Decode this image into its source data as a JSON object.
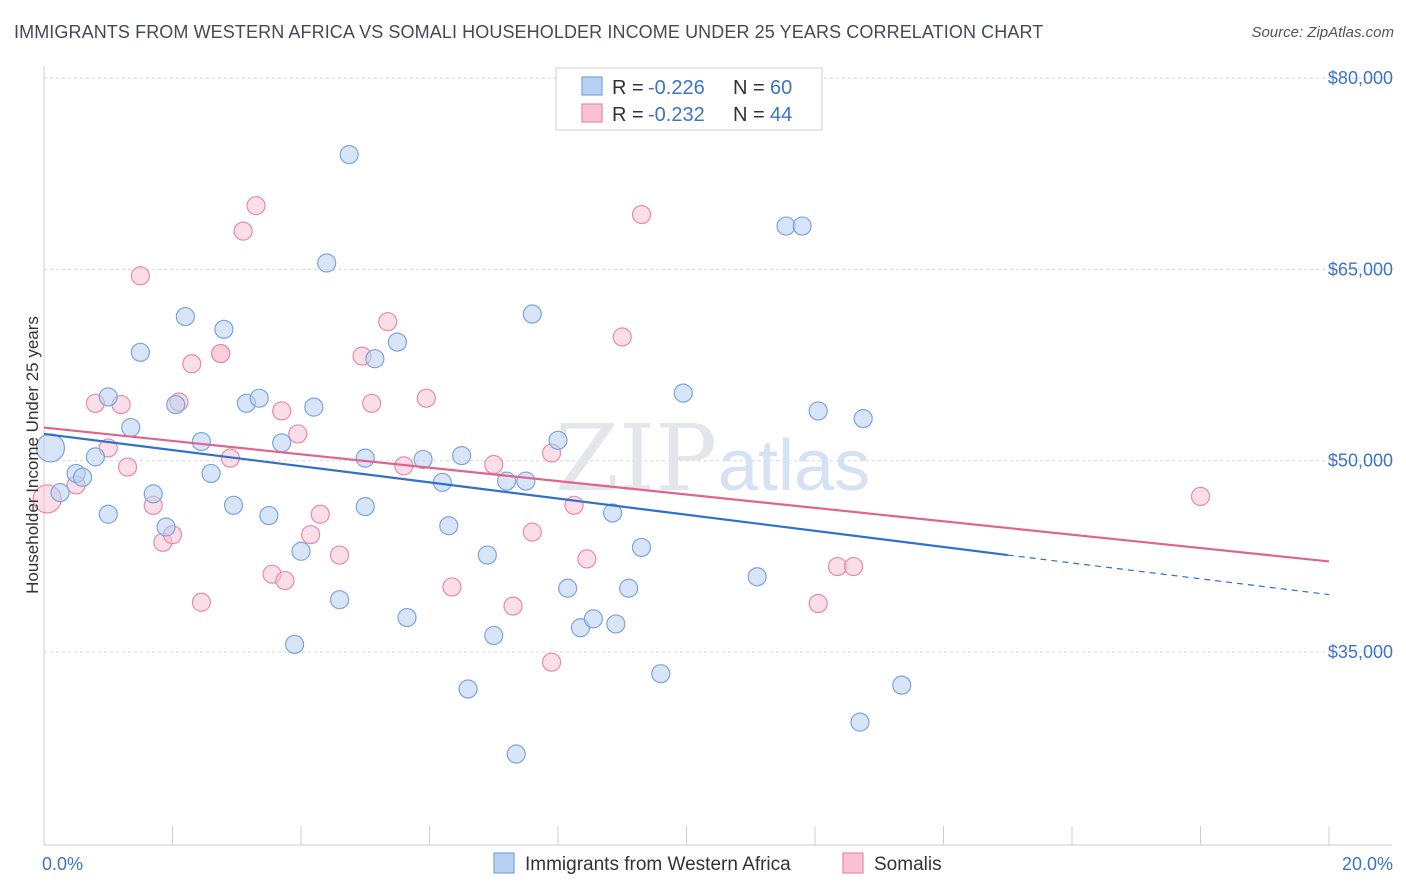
{
  "title": "IMMIGRANTS FROM WESTERN AFRICA VS SOMALI HOUSEHOLDER INCOME UNDER 25 YEARS CORRELATION CHART",
  "source": "Source: ZipAtlas.com",
  "watermark": {
    "zip": "ZIP",
    "atlas": "atlas"
  },
  "colors": {
    "blue_fill": "#b8d0f2",
    "blue_stroke": "#7aa5de",
    "blue_line": "#2f6fcf",
    "pink_fill": "#f7c3d3",
    "pink_stroke": "#e98aa8",
    "pink_line": "#e0648e",
    "axis_text": "#3d74c4",
    "grid": "#d8d8d8"
  },
  "legend": {
    "rows": [
      {
        "r_label": "R = ",
        "r_value": "-0.226",
        "n_label": "N = ",
        "n_value": "60",
        "series": "blue"
      },
      {
        "r_label": "R = ",
        "r_value": "-0.232",
        "n_label": "N = ",
        "n_value": "44",
        "series": "pink"
      }
    ]
  },
  "bottom_legend": [
    {
      "label": "Immigrants from Western Africa",
      "series": "blue"
    },
    {
      "label": "Somalis",
      "series": "pink"
    }
  ],
  "chart_data": {
    "type": "scatter",
    "xlabel": "",
    "ylabel": "Householder Income Under 25 years",
    "xlim": [
      0,
      20
    ],
    "ylim": [
      20000,
      83000
    ],
    "x_tick_labels": [
      "0.0%",
      "20.0%"
    ],
    "x_tick_positions": [
      0,
      20
    ],
    "y_ticks": [
      35000,
      50000,
      65000,
      80000
    ],
    "y_tick_labels": [
      "$35,000",
      "$50,000",
      "$65,000",
      "$80,000"
    ],
    "grid": "horizontal dashed",
    "series": [
      {
        "name": "Immigrants from Western Africa",
        "color": "blue",
        "points": [
          [
            0.1,
            51000
          ],
          [
            0.25,
            47500
          ],
          [
            0.5,
            49000
          ],
          [
            0.6,
            48700
          ],
          [
            0.8,
            50300
          ],
          [
            1.0,
            55000
          ],
          [
            1.0,
            45800
          ],
          [
            1.35,
            52600
          ],
          [
            1.5,
            58500
          ],
          [
            1.7,
            47400
          ],
          [
            1.9,
            44800
          ],
          [
            2.05,
            54400
          ],
          [
            2.2,
            61300
          ],
          [
            2.45,
            51500
          ],
          [
            2.6,
            49000
          ],
          [
            2.8,
            60300
          ],
          [
            2.95,
            46500
          ],
          [
            3.15,
            54500
          ],
          [
            3.35,
            54900
          ],
          [
            3.5,
            45700
          ],
          [
            3.7,
            51400
          ],
          [
            3.9,
            35600
          ],
          [
            4.0,
            42900
          ],
          [
            4.2,
            54200
          ],
          [
            4.4,
            65500
          ],
          [
            4.6,
            39100
          ],
          [
            4.75,
            74000
          ],
          [
            5.0,
            50200
          ],
          [
            5.15,
            58000
          ],
          [
            5.0,
            46400
          ],
          [
            5.5,
            59300
          ],
          [
            5.65,
            37700
          ],
          [
            5.9,
            50100
          ],
          [
            6.2,
            48300
          ],
          [
            6.3,
            44900
          ],
          [
            6.5,
            50400
          ],
          [
            6.6,
            32100
          ],
          [
            6.9,
            42600
          ],
          [
            7.0,
            36300
          ],
          [
            7.2,
            48400
          ],
          [
            7.35,
            27000
          ],
          [
            7.5,
            48400
          ],
          [
            7.6,
            61500
          ],
          [
            8.0,
            51600
          ],
          [
            8.15,
            40000
          ],
          [
            8.35,
            36900
          ],
          [
            8.55,
            37600
          ],
          [
            8.85,
            45900
          ],
          [
            8.9,
            37200
          ],
          [
            9.1,
            40000
          ],
          [
            9.3,
            43200
          ],
          [
            9.6,
            33300
          ],
          [
            9.95,
            55300
          ],
          [
            11.1,
            40900
          ],
          [
            11.55,
            68400
          ],
          [
            11.8,
            68400
          ],
          [
            12.05,
            53900
          ],
          [
            12.75,
            53300
          ],
          [
            12.7,
            29500
          ],
          [
            13.35,
            32400
          ]
        ],
        "trend": {
          "x": [
            0,
            15
          ],
          "y": [
            52100,
            42600
          ],
          "dashed_extension_to": [
            20,
            39500
          ]
        }
      },
      {
        "name": "Somalis",
        "color": "pink",
        "points": [
          [
            0.05,
            47000
          ],
          [
            0.5,
            48100
          ],
          [
            0.8,
            54500
          ],
          [
            1.0,
            51000
          ],
          [
            1.2,
            54400
          ],
          [
            1.3,
            49500
          ],
          [
            1.5,
            64500
          ],
          [
            1.7,
            46500
          ],
          [
            1.85,
            43600
          ],
          [
            2.0,
            44200
          ],
          [
            2.1,
            54600
          ],
          [
            2.3,
            57600
          ],
          [
            2.45,
            38900
          ],
          [
            2.75,
            58400
          ],
          [
            2.9,
            50200
          ],
          [
            3.1,
            68000
          ],
          [
            3.3,
            70000
          ],
          [
            3.55,
            41100
          ],
          [
            3.7,
            53900
          ],
          [
            3.75,
            40600
          ],
          [
            3.95,
            52100
          ],
          [
            4.15,
            44200
          ],
          [
            4.3,
            45800
          ],
          [
            4.6,
            42600
          ],
          [
            4.95,
            58200
          ],
          [
            5.1,
            54500
          ],
          [
            5.35,
            60900
          ],
          [
            5.6,
            49600
          ],
          [
            5.95,
            54900
          ],
          [
            6.35,
            40100
          ],
          [
            7.0,
            49700
          ],
          [
            7.3,
            38600
          ],
          [
            7.6,
            44400
          ],
          [
            7.9,
            50600
          ],
          [
            7.9,
            34200
          ],
          [
            8.25,
            46500
          ],
          [
            8.45,
            42300
          ],
          [
            9.0,
            59700
          ],
          [
            9.3,
            69300
          ],
          [
            12.05,
            38800
          ],
          [
            12.35,
            41700
          ],
          [
            12.6,
            41700
          ],
          [
            18.0,
            47200
          ],
          [
            2.75,
            58400
          ]
        ],
        "trend": {
          "x": [
            0,
            20
          ],
          "y": [
            52600,
            42100
          ]
        }
      }
    ]
  }
}
